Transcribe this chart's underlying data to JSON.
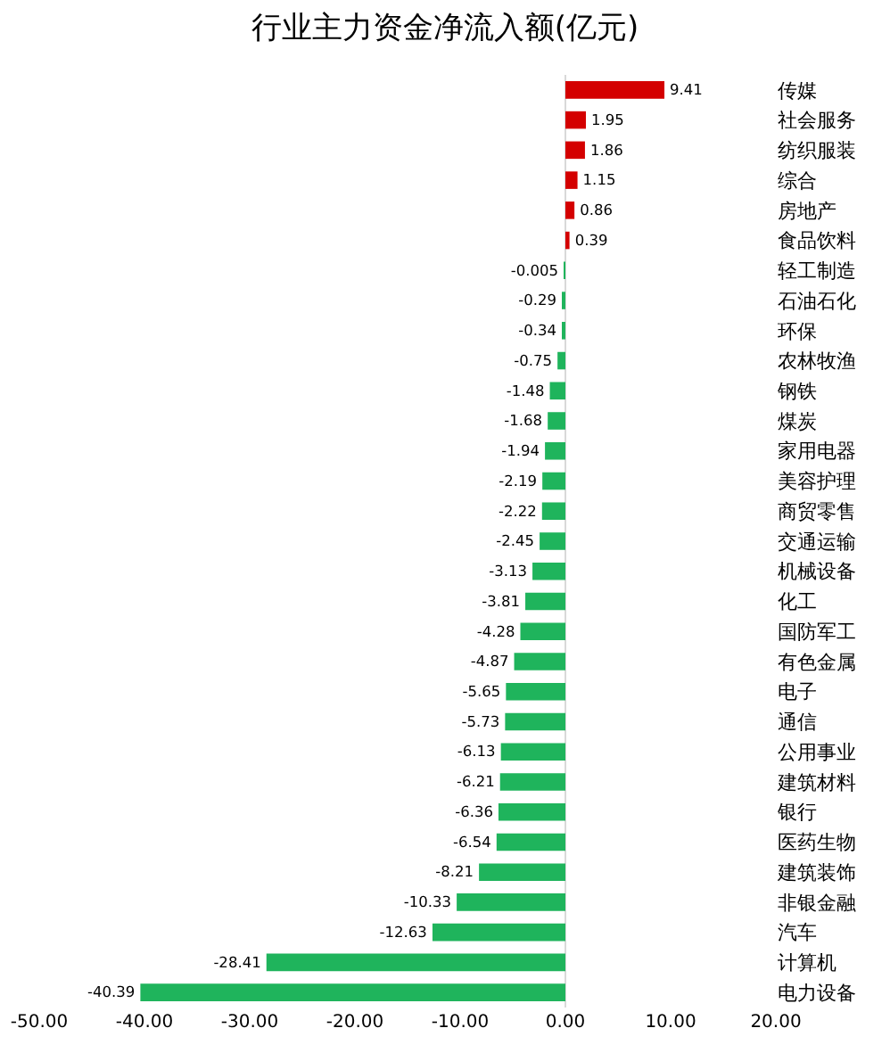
{
  "chart_data": {
    "type": "bar",
    "orientation": "horizontal",
    "title": "行业主力资金净流入额(亿元)",
    "categories": [
      "传媒",
      "社会服务",
      "纺织服装",
      "综合",
      "房地产",
      "食品饮料",
      "轻工制造",
      "石油石化",
      "环保",
      "农林牧渔",
      "钢铁",
      "煤炭",
      "家用电器",
      "美容护理",
      "商贸零售",
      "交通运输",
      "机械设备",
      "化工",
      "国防军工",
      "有色金属",
      "电子",
      "通信",
      "公用事业",
      "建筑材料",
      "银行",
      "医药生物",
      "建筑装饰",
      "非银金融",
      "汽车",
      "计算机",
      "电力设备"
    ],
    "values": [
      9.41,
      1.95,
      1.86,
      1.15,
      0.86,
      0.39,
      -0.005,
      -0.29,
      -0.34,
      -0.75,
      -1.48,
      -1.68,
      -1.94,
      -2.19,
      -2.22,
      -2.45,
      -3.13,
      -3.81,
      -4.28,
      -4.87,
      -5.65,
      -5.73,
      -6.13,
      -6.21,
      -6.36,
      -6.54,
      -8.21,
      -10.33,
      -12.63,
      -28.41,
      -40.39
    ],
    "colors": [
      "#d40000",
      "#d40000",
      "#d40000",
      "#d40000",
      "#d40000",
      "#d40000",
      "#1fb45c",
      "#1fb45c",
      "#1fb45c",
      "#1fb45c",
      "#1fb45c",
      "#1fb45c",
      "#1fb45c",
      "#1fb45c",
      "#1fb45c",
      "#1fb45c",
      "#1fb45c",
      "#1fb45c",
      "#1fb45c",
      "#1fb45c",
      "#1fb45c",
      "#1fb45c",
      "#1fb45c",
      "#1fb45c",
      "#1fb45c",
      "#1fb45c",
      "#1fb45c",
      "#1fb45c",
      "#1fb45c",
      "#1fb45c",
      "#1fb45c"
    ],
    "xlim": [
      -50,
      20
    ],
    "xticks": [
      {
        "value": -50,
        "label": "-50.00"
      },
      {
        "value": -40,
        "label": "-40.00"
      },
      {
        "value": -30,
        "label": "-30.00"
      },
      {
        "value": -20,
        "label": "-20.00"
      },
      {
        "value": -10,
        "label": "-10.00"
      },
      {
        "value": 0,
        "label": "0.00"
      },
      {
        "value": 10,
        "label": "10.00"
      },
      {
        "value": 20,
        "label": "20.00"
      }
    ],
    "ref_lines": [
      {
        "axis": "x",
        "value": 0,
        "color": "#d9d9d9"
      }
    ],
    "data_labels": true
  }
}
